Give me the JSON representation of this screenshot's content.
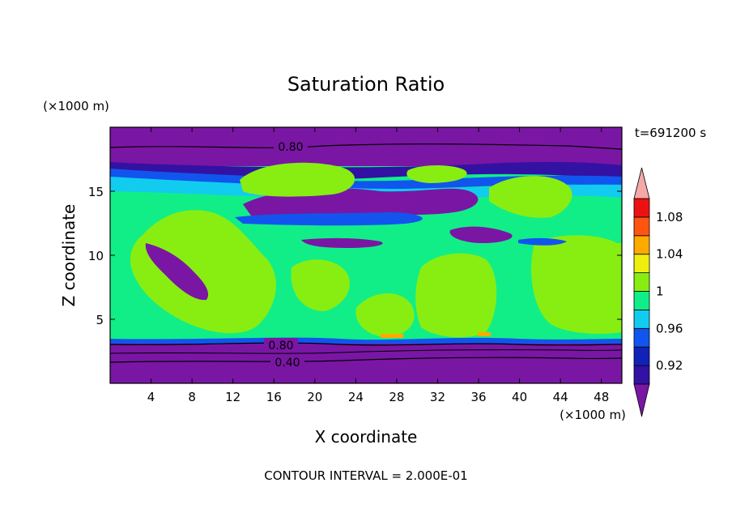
{
  "chart_data": {
    "type": "heatmap",
    "title": "Saturation Ratio",
    "time_label": "t=691200 s",
    "xlabel": "X coordinate",
    "ylabel": "Z coordinate",
    "x_unit": "(×1000 m)",
    "y_unit": "(×1000 m)",
    "footer": "CONTOUR INTERVAL = 2.000E-01",
    "xlim": [
      0,
      50
    ],
    "ylim": [
      0,
      20
    ],
    "x_ticks": [
      4,
      8,
      12,
      16,
      20,
      24,
      28,
      32,
      36,
      40,
      44,
      48
    ],
    "y_ticks": [
      5,
      10,
      15
    ],
    "contour_labels": [
      "0.80",
      "0.80",
      "0.40"
    ],
    "colorbar": {
      "levels": [
        0.9,
        0.92,
        0.94,
        0.96,
        0.98,
        1.0,
        1.02,
        1.04,
        1.06,
        1.08,
        1.1
      ],
      "tick_labels": [
        "0.92",
        "0.96",
        "1",
        "1.04",
        "1.08"
      ],
      "tick_values": [
        0.92,
        0.96,
        1.0,
        1.04,
        1.08
      ],
      "colors": [
        "#7a16a4",
        "#3311a3",
        "#1122b8",
        "#1155ee",
        "#11ccee",
        "#11ee88",
        "#88ee11",
        "#eeee11",
        "#ffaa00",
        "#ff5511",
        "#ee1111",
        "#f4a8a8"
      ]
    },
    "colors": {
      "dry": "#7a16a4",
      "blue1": "#1155ee",
      "cyan": "#11ccee",
      "green": "#11ee88",
      "lime": "#88ee11",
      "orange": "#ffaa00"
    }
  }
}
